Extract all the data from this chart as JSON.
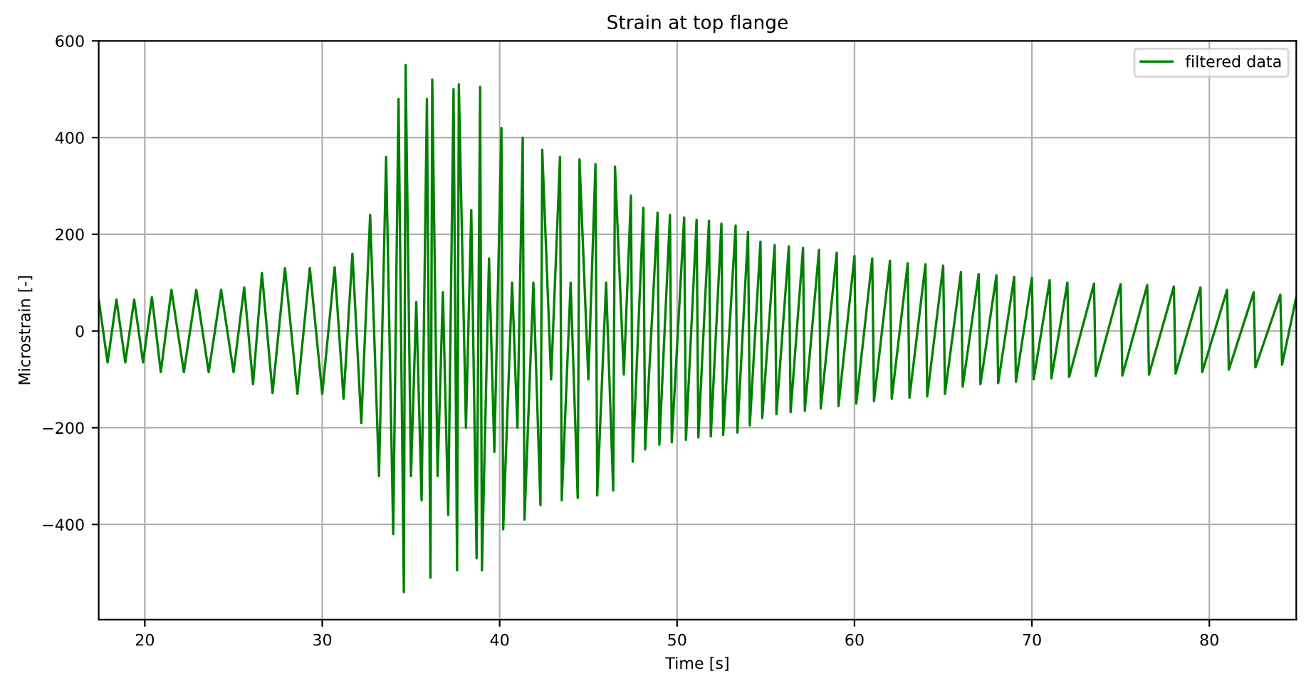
{
  "chart_data": {
    "type": "line",
    "title": "Strain at top flange",
    "xlabel": "Time [s]",
    "ylabel": "Microstrain [-]",
    "xlim": [
      17.4,
      84.9
    ],
    "ylim": [
      -597,
      600
    ],
    "xticks": [
      20,
      30,
      40,
      50,
      60,
      70,
      80
    ],
    "yticks": [
      {
        "value": -400,
        "label": "−400"
      },
      {
        "value": -200,
        "label": "−200"
      },
      0,
      200,
      400,
      600
    ],
    "grid": true,
    "legend": "top right",
    "line_style": "solid",
    "marker": "none",
    "series": [
      {
        "name": "filtered data",
        "color": "#008000",
        "x": [
          17.4,
          17.9,
          18.4,
          18.9,
          19.4,
          19.9,
          20.4,
          20.9,
          21.5,
          22.2,
          22.9,
          23.6,
          24.3,
          25.0,
          25.6,
          26.1,
          26.6,
          27.2,
          27.9,
          28.6,
          29.3,
          30.0,
          30.7,
          31.2,
          31.7,
          32.2,
          32.7,
          33.2,
          33.6,
          34.0,
          34.3,
          34.6,
          34.7,
          35.0,
          35.3,
          35.6,
          35.9,
          36.1,
          36.2,
          36.5,
          36.8,
          37.1,
          37.4,
          37.6,
          37.7,
          38.1,
          38.4,
          38.7,
          38.9,
          39.0,
          39.4,
          39.7,
          40.1,
          40.2,
          40.7,
          41.0,
          41.3,
          41.4,
          41.9,
          42.3,
          42.4,
          42.9,
          43.4,
          43.5,
          44.0,
          44.4,
          44.5,
          45.0,
          45.4,
          45.5,
          46.0,
          46.4,
          46.5,
          47.0,
          47.4,
          47.5,
          48.1,
          48.2,
          48.9,
          49.0,
          49.6,
          49.7,
          50.4,
          50.5,
          51.1,
          51.2,
          51.8,
          51.9,
          52.5,
          52.6,
          53.3,
          53.4,
          54.0,
          54.1,
          54.7,
          54.8,
          55.5,
          55.6,
          56.3,
          56.4,
          57.1,
          57.2,
          58.0,
          58.1,
          59.0,
          59.1,
          60.0,
          60.1,
          61.0,
          61.1,
          62.0,
          62.1,
          63.0,
          63.1,
          64.0,
          64.1,
          65.0,
          65.1,
          66.0,
          66.1,
          67.0,
          67.1,
          68.0,
          68.1,
          69.0,
          69.1,
          70.0,
          70.1,
          71.0,
          71.1,
          72.0,
          72.1,
          73.5,
          73.6,
          75.0,
          75.1,
          76.5,
          76.6,
          78.0,
          78.1,
          79.5,
          79.6,
          81.0,
          81.1,
          82.5,
          82.6,
          84.0,
          84.1,
          84.9
        ],
        "values": [
          65,
          -65,
          65,
          -65,
          65,
          -65,
          70,
          -85,
          85,
          -85,
          85,
          -85,
          85,
          -85,
          90,
          -110,
          120,
          -128,
          130,
          -130,
          130,
          -130,
          132,
          -140,
          160,
          -190,
          240,
          -300,
          360,
          -420,
          480,
          -540,
          550,
          -300,
          60,
          -350,
          480,
          -510,
          520,
          -300,
          80,
          -380,
          500,
          -495,
          510,
          -200,
          250,
          -470,
          505,
          -495,
          150,
          -250,
          420,
          -410,
          100,
          -200,
          400,
          -390,
          100,
          -360,
          375,
          -100,
          360,
          -350,
          100,
          -345,
          355,
          -100,
          345,
          -340,
          100,
          -330,
          340,
          -90,
          280,
          -270,
          255,
          -245,
          245,
          -235,
          240,
          -230,
          235,
          -225,
          230,
          -220,
          228,
          -218,
          222,
          -215,
          218,
          -210,
          205,
          -195,
          185,
          -180,
          178,
          -172,
          175,
          -168,
          172,
          -165,
          168,
          -160,
          162,
          -155,
          155,
          -150,
          150,
          -145,
          145,
          -140,
          140,
          -138,
          138,
          -135,
          135,
          -130,
          122,
          -115,
          118,
          -110,
          115,
          -108,
          112,
          -105,
          110,
          -100,
          105,
          -98,
          100,
          -95,
          98,
          -93,
          97,
          -92,
          95,
          -90,
          92,
          -88,
          90,
          -85,
          85,
          -80,
          80,
          -75,
          75,
          -70,
          70
        ]
      }
    ]
  }
}
